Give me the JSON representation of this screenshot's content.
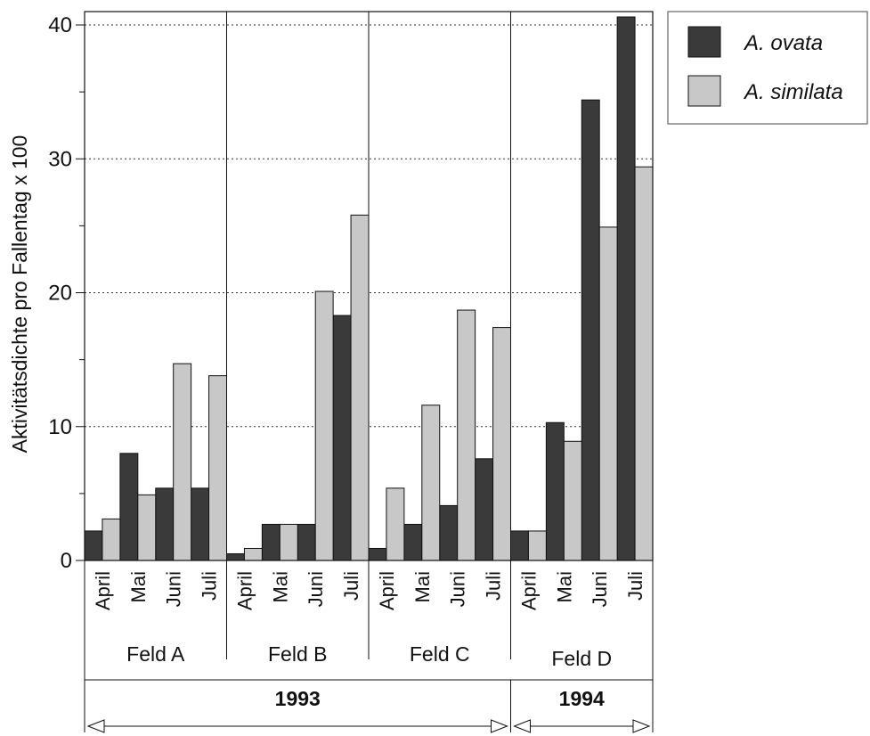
{
  "chart_data": {
    "type": "bar",
    "ylabel": "Aktivitätsdichte pro Fallentag x 100",
    "ylim": [
      0,
      41
    ],
    "yticks": [
      0,
      10,
      20,
      30,
      40
    ],
    "grid": "horizontal dotted at major ticks",
    "legend_placement": "top-right, outside plot",
    "categories": [
      "April",
      "Mai",
      "Juni",
      "Juli",
      "April",
      "Mai",
      "Juni",
      "Juli",
      "April",
      "Mai",
      "Juni",
      "Juli",
      "April",
      "Mai",
      "Juni",
      "Juli"
    ],
    "groups": [
      {
        "label": "Feld A",
        "count": 4
      },
      {
        "label": "Feld B",
        "count": 4
      },
      {
        "label": "Feld C",
        "count": 4
      },
      {
        "label": "Feld D",
        "count": 4
      }
    ],
    "years": [
      {
        "label": "1993",
        "groups": 3
      },
      {
        "label": "1994",
        "groups": 1
      }
    ],
    "series": [
      {
        "name": "A. ovata",
        "color": "#3a3a3a",
        "values": [
          2.2,
          8.0,
          5.4,
          5.4,
          0.5,
          2.7,
          2.7,
          18.3,
          0.9,
          2.7,
          4.1,
          7.6,
          2.2,
          10.3,
          34.4,
          40.6
        ]
      },
      {
        "name": "A. similata",
        "color": "#c8c8c8",
        "values": [
          3.1,
          4.9,
          14.7,
          13.8,
          0.9,
          2.7,
          20.1,
          25.8,
          5.4,
          11.6,
          18.7,
          17.4,
          2.2,
          8.9,
          24.9,
          29.4
        ]
      }
    ]
  }
}
